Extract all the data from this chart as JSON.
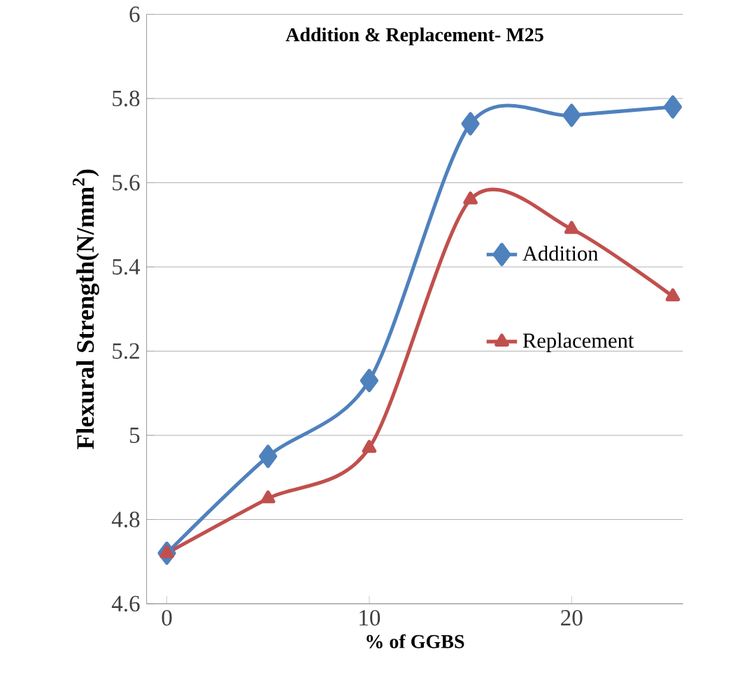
{
  "chart_data": {
    "type": "line",
    "title": "Addition & Replacement- M25",
    "xlabel": "% of GGBS",
    "ylabel": "Flexural Strength(N/mm$^{2}$)",
    "x": [
      0,
      5,
      10,
      15,
      20,
      25
    ],
    "series": [
      {
        "name": "Addition",
        "color": "#4f81bd",
        "marker": "diamond",
        "values": [
          4.72,
          4.95,
          5.13,
          5.74,
          5.76,
          5.78
        ]
      },
      {
        "name": "Replacement",
        "color": "#c0504d",
        "marker": "triangle",
        "values": [
          4.72,
          4.85,
          4.97,
          5.56,
          5.49,
          5.33
        ]
      }
    ],
    "xlim": [
      -1,
      25.5
    ],
    "xticks": [
      0,
      10,
      20
    ],
    "ylim": [
      4.6,
      6
    ],
    "yticks": [
      4.6,
      4.8,
      5,
      5.2,
      5.4,
      5.6,
      5.8,
      6
    ],
    "grid": "y",
    "legend": "right",
    "line_style": "solid"
  }
}
